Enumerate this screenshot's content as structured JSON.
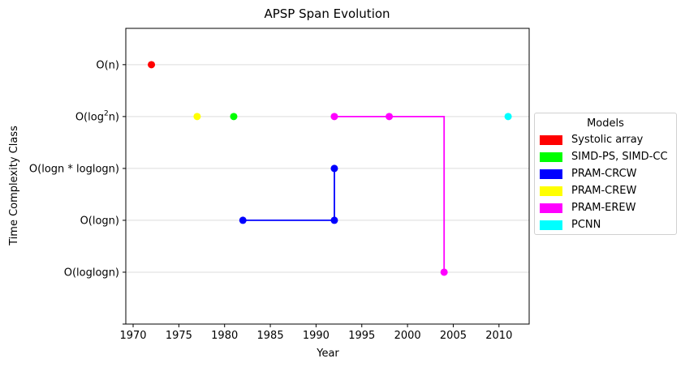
{
  "chart_data": {
    "type": "scatter",
    "title": "APSP Span Evolution",
    "xlabel": "Year",
    "ylabel": "Time Complexity Class",
    "xlim": [
      1969.2,
      2013.3
    ],
    "xticks": [
      1970,
      1975,
      1980,
      1985,
      1990,
      1995,
      2000,
      2005,
      2010
    ],
    "ylim": [
      -1,
      4.7
    ],
    "yticks": [
      {
        "base": "O(",
        "main": "log",
        "sup": "",
        "tail": "log",
        "italic": "n",
        "close": ")",
        "value": 0
      },
      {
        "base": "O(",
        "main": "log",
        "sup": "",
        "tail": "",
        "italic": "n",
        "close": ")",
        "value": 1
      },
      {
        "base": "O(",
        "main": "log",
        "sup": "",
        "tail": "",
        "italic": "n",
        "star": "*",
        "extra": "loglog",
        "close": ")",
        "value": 2
      },
      {
        "base": "O(",
        "main": "log",
        "sup": "2",
        "tail": "",
        "italic": "n",
        "close": ")",
        "value": 3
      },
      {
        "base": "O(",
        "main": "",
        "sup": "",
        "tail": "",
        "italic": "n",
        "close": ")",
        "value": 4
      }
    ],
    "ytick_labels": [
      "O(loglogn)",
      "O(logn)",
      "O(logn * loglogn)",
      "O(log²n)",
      "O(n)"
    ],
    "grid": "horizontal",
    "legend_title": "Models",
    "legend_position": "right",
    "series": [
      {
        "name": "Systolic array",
        "color": "#ff0000",
        "points": [
          [
            1972,
            4
          ]
        ],
        "step": []
      },
      {
        "name": "SIMD-PS, SIMD-CC",
        "color": "#00ff00",
        "points": [
          [
            1981,
            3
          ]
        ],
        "step": []
      },
      {
        "name": "PRAM-CRCW",
        "color": "#0000ff",
        "points": [
          [
            1982,
            1
          ],
          [
            1992,
            1
          ],
          [
            1992,
            2
          ]
        ],
        "step": [
          [
            1982,
            1
          ],
          [
            1992,
            1
          ],
          [
            1992,
            2
          ]
        ]
      },
      {
        "name": "PRAM-CREW",
        "color": "#ffff00",
        "points": [
          [
            1977,
            3
          ]
        ],
        "step": []
      },
      {
        "name": "PRAM-EREW",
        "color": "#ff00ff",
        "points": [
          [
            1992,
            3
          ],
          [
            1998,
            3
          ],
          [
            2004,
            0
          ]
        ],
        "step": [
          [
            1992,
            3
          ],
          [
            2004,
            3
          ],
          [
            2004,
            0
          ]
        ]
      },
      {
        "name": "PCNN",
        "color": "#00ffff",
        "points": [
          [
            2011,
            3
          ]
        ],
        "step": []
      }
    ]
  }
}
